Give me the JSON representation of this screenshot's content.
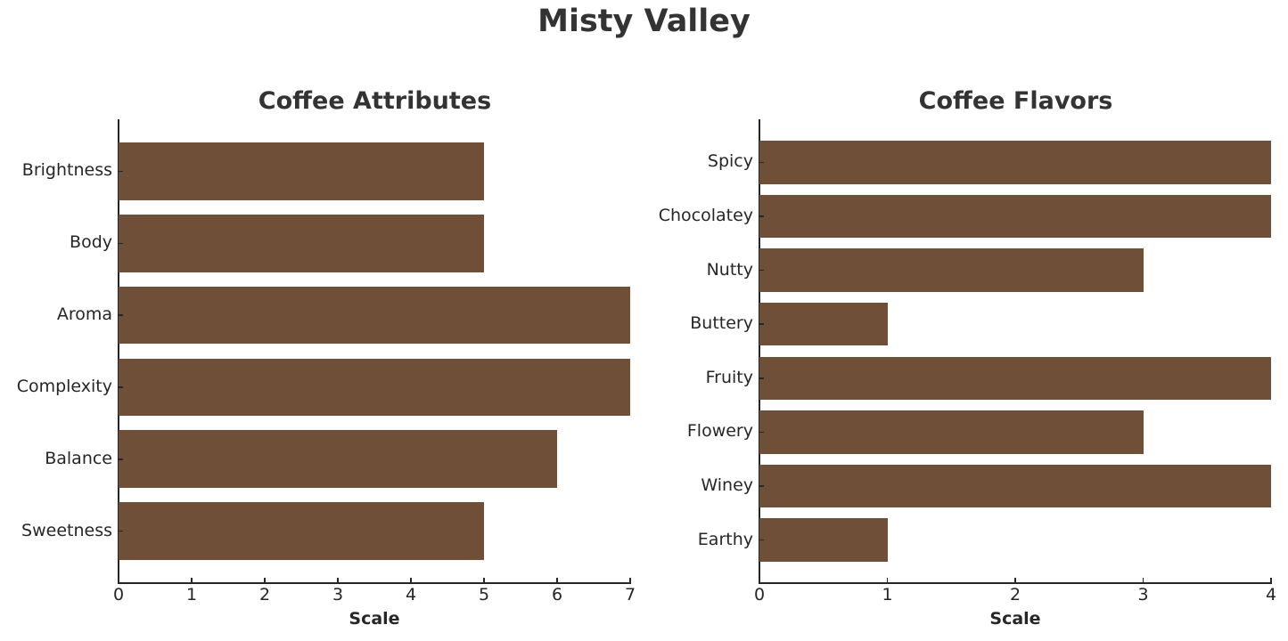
{
  "title": "Misty Valley",
  "colors": {
    "bar": "#6f4f37",
    "text": "#333333",
    "axis": "#262626"
  },
  "chart_data": [
    {
      "type": "bar",
      "orientation": "horizontal",
      "title": "Coffee Attributes",
      "categories": [
        "Brightness",
        "Body",
        "Aroma",
        "Complexity",
        "Balance",
        "Sweetness"
      ],
      "values": [
        5,
        5,
        7,
        7,
        6,
        5
      ],
      "xlabel": "Scale",
      "ylabel": "",
      "xlim": [
        0,
        7
      ],
      "xticks": [
        "0",
        "1",
        "2",
        "3",
        "4",
        "5",
        "6",
        "7"
      ],
      "grid": false
    },
    {
      "type": "bar",
      "orientation": "horizontal",
      "title": "Coffee Flavors",
      "categories": [
        "Spicy",
        "Chocolatey",
        "Nutty",
        "Buttery",
        "Fruity",
        "Flowery",
        "Winey",
        "Earthy"
      ],
      "values": [
        4,
        4,
        3,
        1,
        4,
        3,
        4,
        1
      ],
      "xlabel": "Scale",
      "ylabel": "",
      "xlim": [
        0,
        4
      ],
      "xticks": [
        "0",
        "1",
        "2",
        "3",
        "4"
      ],
      "grid": false
    }
  ]
}
